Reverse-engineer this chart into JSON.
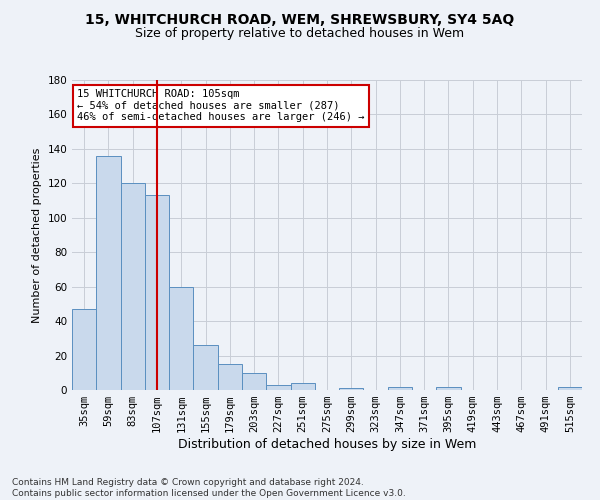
{
  "title1": "15, WHITCHURCH ROAD, WEM, SHREWSBURY, SY4 5AQ",
  "title2": "Size of property relative to detached houses in Wem",
  "xlabel": "Distribution of detached houses by size in Wem",
  "ylabel": "Number of detached properties",
  "categories": [
    "35sqm",
    "59sqm",
    "83sqm",
    "107sqm",
    "131sqm",
    "155sqm",
    "179sqm",
    "203sqm",
    "227sqm",
    "251sqm",
    "275sqm",
    "299sqm",
    "323sqm",
    "347sqm",
    "371sqm",
    "395sqm",
    "419sqm",
    "443sqm",
    "467sqm",
    "491sqm",
    "515sqm"
  ],
  "values": [
    47,
    136,
    120,
    113,
    60,
    26,
    15,
    10,
    3,
    4,
    0,
    1,
    0,
    2,
    0,
    2,
    0,
    0,
    0,
    0,
    2
  ],
  "bar_color": "#c9d9ec",
  "bar_edge_color": "#5a8fc0",
  "vline_x": 3,
  "vline_color": "#cc0000",
  "annotation_line1": "15 WHITCHURCH ROAD: 105sqm",
  "annotation_line2": "← 54% of detached houses are smaller (287)",
  "annotation_line3": "46% of semi-detached houses are larger (246) →",
  "annotation_box_color": "#ffffff",
  "annotation_box_edge": "#cc0000",
  "ylim": [
    0,
    180
  ],
  "yticks": [
    0,
    20,
    40,
    60,
    80,
    100,
    120,
    140,
    160,
    180
  ],
  "footnote": "Contains HM Land Registry data © Crown copyright and database right 2024.\nContains public sector information licensed under the Open Government Licence v3.0.",
  "background_color": "#eef2f8",
  "grid_color": "#c8cdd6",
  "title1_fontsize": 10,
  "title2_fontsize": 9,
  "xlabel_fontsize": 9,
  "ylabel_fontsize": 8,
  "tick_fontsize": 7.5,
  "annotation_fontsize": 7.5,
  "footnote_fontsize": 6.5
}
